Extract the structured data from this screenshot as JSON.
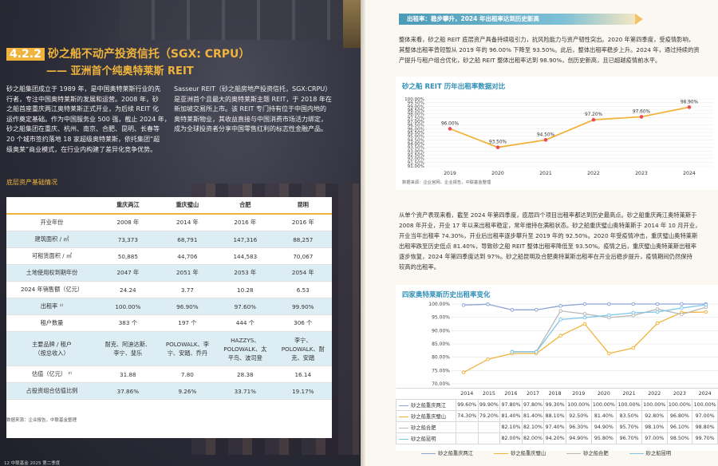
{
  "left": {
    "section_number": "4.2.2",
    "section_title": "砂之船不动产投资信托（SGX: CRPU）",
    "section_subtitle": "—— 亚洲首个纯奥特莱斯 REIT",
    "para1_lines": [
      "砂之船集团成立于 1989 年，是中国奥特莱斯行业的先",
      "行者，专注中国奥特莱斯的发展和运营。2008 年，砂",
      "之船首座重庆两江奥特莱斯正式开业，为后续 REIT 化",
      "运作奠定基础。作为中国服务业 500 强，截止 2024 年，",
      "砂之船集团在重庆、杭州、南京、合肥、昆明、长春等",
      "20 个城市签约落地 18 家超级奥特莱斯，依托集团“超",
      "级奥莱”商业模式，在行业内构建了差异化竞争优势。"
    ],
    "para2_lines": [
      "Sasseur REIT（砂之船房地产投资信托，SGX:CRPU）",
      "是亚洲首个且最大的奥特莱斯主题 REIT，于 2018 年在",
      "新加坡交易所上市。该 REIT 专门持有位于中国内地的",
      "奥特莱斯物业，其收益直接与中国消费市场活力绑定，",
      "成为全球投资者分享中国零售红利的标志性金融产品。"
    ],
    "table_title": "底层资产基础情况",
    "table_headers": [
      "",
      "重庆两江",
      "重庆璧山",
      "合肥",
      "昆明"
    ],
    "table_rows": [
      [
        "开业年份",
        "2008 年",
        "2014 年",
        "2016 年",
        "2016 年"
      ],
      [
        "建筑面积 / ㎡",
        "73,373",
        "68,791",
        "147,316",
        "88,257"
      ],
      [
        "可租赁面积 / ㎡",
        "50,885",
        "44,706",
        "144,583",
        "70,067"
      ],
      [
        "土地使用权到期年份",
        "2047 年",
        "2051 年",
        "2053 年",
        "2054 年"
      ],
      [
        "2024 年销售额（亿元）",
        "24.24",
        "3.77",
        "10.28",
        "6.53"
      ],
      [
        "出租率 ¹⁾",
        "100.00%",
        "96.90%",
        "97.60%",
        "99.90%"
      ],
      [
        "租户数量",
        "383 个",
        "197 个",
        "444 个",
        "306 个"
      ],
      [
        "主要品牌 / 租户\n（按总收入）",
        "耐克、阿迪达斯、\n李宁、斐乐",
        "POLOWALK、李\n宁、安踏、乔丹",
        "HAZZYS、\nPOLOWALK、太\n平鸟、波司登",
        "李宁、\nPOLOWALK、耐\n克、安踏"
      ],
      [
        "估值（亿元） ²⁾",
        "31.88",
        "7.80",
        "28.38",
        "16.14"
      ],
      [
        "占投资组合估值比例",
        "37.86%",
        "9.26%",
        "33.71%",
        "19.17%"
      ]
    ],
    "table_source": "数据来源：企业报告，中联基金整理",
    "footer": "12  中联基金 2025 第二季度"
  },
  "right": {
    "banner": "出租率：稳步攀升，2024 年出租率达到历史新高",
    "para1_lines": [
      "整体来看，砂之船 REIT 底层资产具备持续吸引力，抗风险能力与资产韧性突出。2020 年第四季度，受疫情影响，",
      "其整体出租率曾短暂从 2019 年的 96.00% 下降至 93.50%。此后，整体出租率稳步上升。2024 年，通过持续的资",
      "产提升与租户组合优化，砂之船 REIT 整体出租率达到 98.90%，创历史新高，且已超越疫情前水平。"
    ],
    "chart1_title": "砂之船 REIT 历年出租率数据对比",
    "chart1_source": "数据来源：企业官网、企业报告，中联基金整理",
    "para2_lines": [
      "从单个资产表现来看，截至 2024 年第四季度，底层四个项目出租率都达到历史最高点。砂之船重庆两江奥特莱斯于",
      "2008 年开业，开业 17 年以来出租率稳定，常年维持在满租状态。砂之船重庆璧山奥特莱斯于 2014 年 10 月开业，",
      "开业当年出租率 74.30%，开业后出租率逐步攀升至 2019 年的 92.50%。2020 年受疫情冲击，重庆璧山奥特莱斯",
      "出租率跌至历史低点 81.40%，导致砂之船 REIT 整体出租率降低至 93.50%。疫情之后，重庆璧山奥特莱斯出租率",
      "逐步恢复，2024 年第四季度达到 97%。砂之船昆明及合肥奥特莱斯出租率在开业后稳步提升，疫情期间仍然保持",
      "较高的出租率。"
    ],
    "chart2_title": "四家奥特莱斯历史出租率变化"
  },
  "chart_data": [
    {
      "type": "line",
      "title": "砂之船 REIT 历年出租率数据对比",
      "x": [
        "2019",
        "2020",
        "2021",
        "2022",
        "2023",
        "2024"
      ],
      "values": [
        96.0,
        93.5,
        94.5,
        97.2,
        97.6,
        98.9
      ],
      "labels": [
        "96.00%",
        "93.50%",
        "94.50%",
        "97.20%",
        "97.60%",
        "98.90%"
      ],
      "ylim": [
        91.0,
        100.0
      ],
      "yticks": [
        "91.00%",
        "91.50%",
        "92.00%",
        "92.50%",
        "93.00%",
        "93.50%",
        "94.00%",
        "94.50%",
        "95.00%",
        "95.50%",
        "96.00%",
        "96.50%",
        "97.00%",
        "97.50%",
        "98.00%",
        "98.50%",
        "99.00%",
        "99.50%",
        "100.00%"
      ],
      "color": "#f0b43c"
    },
    {
      "type": "line",
      "title": "四家奥特莱斯历史出租率变化",
      "x": [
        "2014",
        "2015",
        "2016",
        "2017",
        "2018",
        "2019",
        "2020",
        "2021",
        "2022",
        "2023",
        "2024"
      ],
      "ylim": [
        70,
        100
      ],
      "yticks": [
        "70.00%",
        "75.00%",
        "80.00%",
        "85.00%",
        "90.00%",
        "95.00%",
        "100.00%"
      ],
      "series": [
        {
          "name": "砂之船重庆两江",
          "color": "#8fa4d6",
          "values": [
            99.6,
            99.9,
            97.8,
            97.8,
            99.3,
            100.0,
            100.0,
            100.0,
            100.0,
            100.0,
            100.0
          ],
          "labels": [
            "99.60%",
            "99.90%",
            "97.80%",
            "97.80%",
            "99.30%",
            "100.00%",
            "100.00%",
            "100.00%",
            "100.00%",
            "100.00%",
            "100.00%"
          ]
        },
        {
          "name": "砂之船重庆璧山",
          "color": "#f0b43c",
          "values": [
            74.3,
            79.2,
            81.4,
            81.4,
            88.1,
            92.5,
            81.4,
            83.5,
            92.8,
            96.8,
            97.0
          ],
          "labels": [
            "74.30%",
            "79.20%",
            "81.40%",
            "81.40%",
            "88.10%",
            "92.50%",
            "81.40%",
            "83.50%",
            "92.80%",
            "96.80%",
            "97.00%"
          ]
        },
        {
          "name": "砂之船合肥",
          "color": "#b8b8b8",
          "values": [
            null,
            null,
            82.1,
            82.1,
            97.4,
            96.3,
            94.9,
            95.7,
            98.1,
            96.1,
            98.8
          ],
          "labels": [
            "",
            "",
            "82.10%",
            "82.10%",
            "97.40%",
            "96.30%",
            "94.90%",
            "95.70%",
            "98.10%",
            "96.10%",
            "98.80%"
          ]
        },
        {
          "name": "砂之船昆明",
          "color": "#7fc6e8",
          "values": [
            null,
            null,
            82.0,
            82.0,
            94.2,
            94.9,
            95.8,
            96.7,
            97.0,
            98.5,
            99.7
          ],
          "labels": [
            "",
            "",
            "82.00%",
            "82.00%",
            "94.20%",
            "94.90%",
            "95.80%",
            "96.70%",
            "97.00%",
            "98.50%",
            "99.70%"
          ]
        }
      ]
    }
  ]
}
